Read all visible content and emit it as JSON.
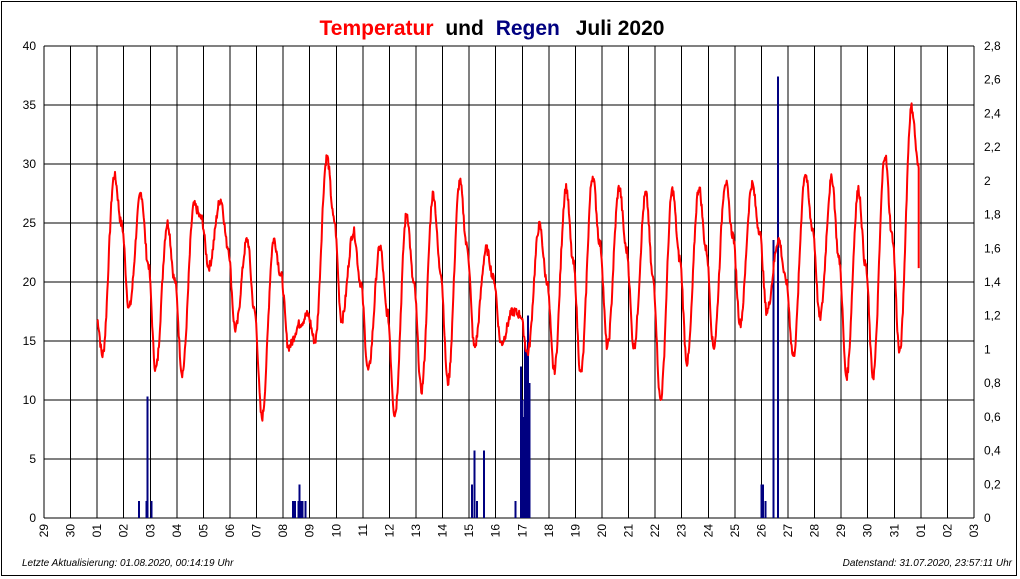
{
  "chart_data": {
    "type": "line",
    "title": {
      "part1": "Temperatur",
      "part2": "und",
      "part3": "Regen",
      "part4": "Juli 2020",
      "color1": "#ff0000",
      "color2": "#000000",
      "color3": "#000080",
      "color4": "#000000"
    },
    "x_ticks": [
      "29",
      "30",
      "01",
      "02",
      "03",
      "04",
      "05",
      "06",
      "07",
      "08",
      "09",
      "10",
      "11",
      "12",
      "13",
      "14",
      "15",
      "16",
      "17",
      "18",
      "19",
      "20",
      "21",
      "22",
      "23",
      "24",
      "25",
      "26",
      "27",
      "28",
      "29",
      "30",
      "31",
      "01",
      "02",
      "03"
    ],
    "y_left": {
      "min": 0,
      "max": 40,
      "ticks": [
        "0",
        "5",
        "10",
        "15",
        "20",
        "25",
        "30",
        "35",
        "40"
      ]
    },
    "y_right": {
      "min": 0,
      "max": 2.8,
      "ticks": [
        "0",
        "0,2",
        "0,4",
        "0,6",
        "0,8",
        "1",
        "1,2",
        "1,4",
        "1,6",
        "1,8",
        "2",
        "2,2",
        "2,4",
        "2,6",
        "2,8"
      ]
    },
    "grid": true,
    "series": [
      {
        "name": "Temperatur",
        "axis": "left",
        "color": "#ff0000",
        "daily": [
          {
            "min": 13.8,
            "max": 29.0
          },
          {
            "min": 17.8,
            "max": 27.5
          },
          {
            "min": 12.6,
            "max": 25.0
          },
          {
            "min": 12.3,
            "max": 26.5
          },
          {
            "min": 21.3,
            "max": 27.0
          },
          {
            "min": 16.0,
            "max": 23.6
          },
          {
            "min": 8.5,
            "max": 23.6
          },
          {
            "min": 14.5,
            "max": 16.5
          },
          {
            "min": 15.0,
            "max": 30.6
          },
          {
            "min": 16.8,
            "max": 24.3
          },
          {
            "min": 12.5,
            "max": 23.0
          },
          {
            "min": 8.8,
            "max": 25.8
          },
          {
            "min": 10.8,
            "max": 27.5
          },
          {
            "min": 11.5,
            "max": 28.5
          },
          {
            "min": 14.5,
            "max": 22.8
          },
          {
            "min": 14.8,
            "max": 17.5
          },
          {
            "min": 14.0,
            "max": 24.8
          },
          {
            "min": 12.5,
            "max": 28.0
          },
          {
            "min": 12.2,
            "max": 29.0
          },
          {
            "min": 14.5,
            "max": 28.0
          },
          {
            "min": 14.5,
            "max": 27.5
          },
          {
            "min": 10.0,
            "max": 27.8
          },
          {
            "min": 13.2,
            "max": 28.0
          },
          {
            "min": 14.5,
            "max": 28.5
          },
          {
            "min": 16.5,
            "max": 28.3
          },
          {
            "min": 17.5,
            "max": 23.6
          },
          {
            "min": 13.7,
            "max": 29.2
          },
          {
            "min": 17.0,
            "max": 28.8
          },
          {
            "min": 12.0,
            "max": 27.8
          },
          {
            "min": 12.0,
            "max": 30.8
          },
          {
            "min": 14.0,
            "max": 34.8
          }
        ],
        "end_value": 21.5
      },
      {
        "name": "Regen",
        "axis": "right",
        "color": "#000080",
        "x": [
          2.58,
          2.85,
          2.9,
          3.05,
          8.38,
          8.45,
          8.58,
          8.62,
          8.68,
          8.72,
          8.85,
          15.1,
          15.2,
          15.3,
          15.55,
          16.75,
          16.95,
          17.0,
          17.05,
          17.1,
          17.18,
          17.22,
          17.28,
          26.0,
          26.05,
          26.15,
          26.45,
          26.62
        ],
        "values": [
          0.1,
          0.1,
          0.72,
          0.1,
          0.1,
          0.1,
          0.1,
          0.2,
          0.1,
          0.1,
          0.1,
          0.2,
          0.4,
          0.1,
          0.4,
          0.1,
          0.9,
          0.7,
          0.6,
          1.05,
          1.0,
          1.2,
          0.8,
          0.2,
          0.2,
          0.1,
          1.65,
          2.62
        ]
      }
    ]
  },
  "footer": {
    "left": "Letzte Aktualisierung: 01.08.2020, 00:14:19 Uhr",
    "right": "Datenstand: 31.07.2020, 23:57:11 Uhr"
  }
}
